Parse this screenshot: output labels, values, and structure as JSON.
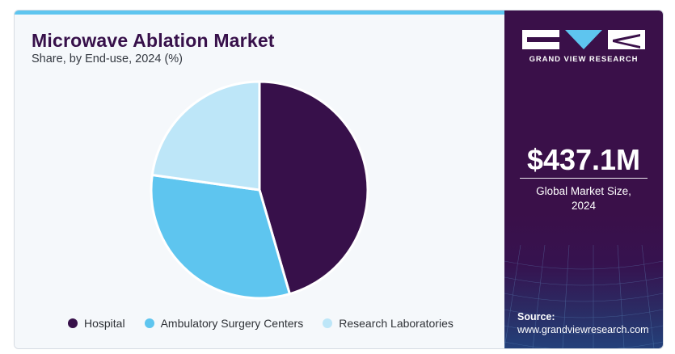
{
  "title": "Microwave Ablation Market",
  "subtitle": "Share, by End-use, 2024 (%)",
  "chart_data": {
    "type": "pie",
    "title": "Microwave Ablation Market",
    "subtitle": "Share, by End-use, 2024 (%)",
    "categories": [
      "Hospital",
      "Ambulatory Surgery Centers",
      "Research Laboratories"
    ],
    "values": [
      45.5,
      31.7,
      22.8
    ],
    "colors": [
      "#37104a",
      "#5ec5ef",
      "#bde6f8"
    ],
    "legend_position": "bottom"
  },
  "brand": {
    "logo_icon": "gvr-logo-icon",
    "name": "GRAND VIEW RESEARCH"
  },
  "stat": {
    "value": "$437.1M",
    "caption_line1": "Global Market Size,",
    "caption_line2": "2024"
  },
  "source": {
    "label": "Source:",
    "url": "www.grandviewresearch.com"
  }
}
